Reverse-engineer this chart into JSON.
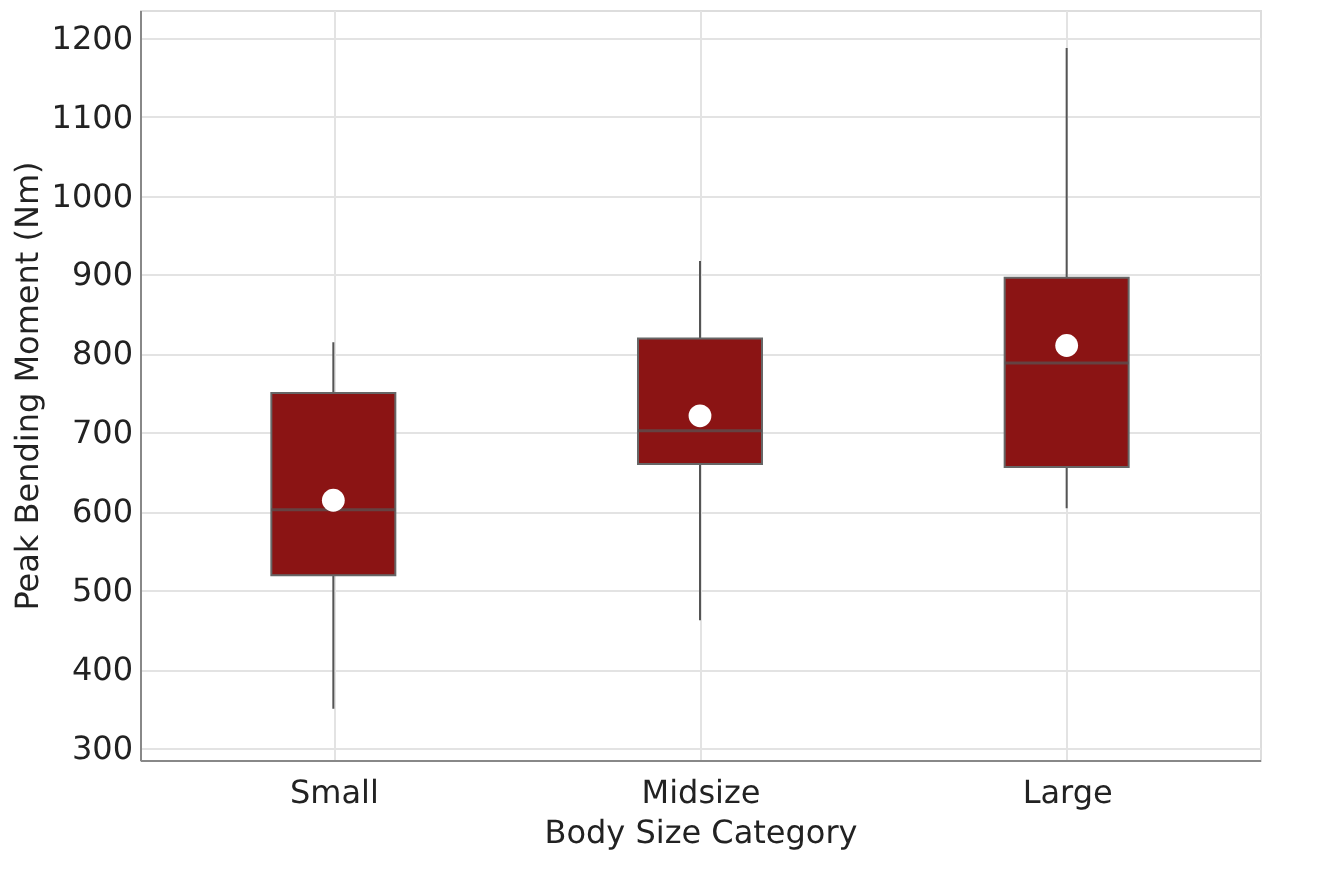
{
  "chart_data": {
    "type": "box",
    "xlabel": "Body Size Category",
    "ylabel": "Peak Bending Moment (Nm)",
    "categories": [
      "Small",
      "Midsize",
      "Large"
    ],
    "boxes": [
      {
        "low": 350,
        "q1": 519,
        "median": 602,
        "q3": 750,
        "high": 814,
        "mean": 614
      },
      {
        "low": 462,
        "q1": 660,
        "median": 702,
        "q3": 819,
        "high": 917,
        "mean": 721
      },
      {
        "low": 604,
        "q1": 656,
        "median": 788,
        "q3": 896,
        "high": 1187,
        "mean": 810
      }
    ],
    "color": "#8b1414",
    "ylim": [
      285,
      1235
    ],
    "yticks": [
      300,
      400,
      500,
      600,
      700,
      800,
      900,
      1000,
      1100,
      1200
    ],
    "grid": true
  }
}
